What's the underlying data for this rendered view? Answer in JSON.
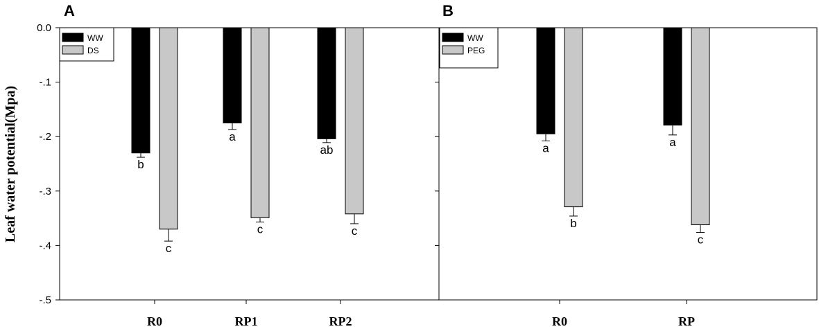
{
  "y_axis_label": "Leaf water potential(Mpa)",
  "y_tick_labels": [
    "0.0",
    "-.1",
    "-.2",
    "-.3",
    "-.4",
    "-.5"
  ],
  "colors": {
    "WW": "#000000",
    "DS": "#c8c8c8",
    "PEG": "#c8c8c8"
  },
  "chart_data": [
    {
      "type": "bar",
      "panel": "A",
      "categories": [
        "R0",
        "RP1",
        "RP2"
      ],
      "series": [
        {
          "name": "WW",
          "values": [
            -0.23,
            -0.175,
            -0.204
          ],
          "errors": [
            0.008,
            0.012,
            0.007
          ],
          "letters": [
            "b",
            "a",
            "ab"
          ]
        },
        {
          "name": "DS",
          "values": [
            -0.37,
            -0.349,
            -0.342
          ],
          "errors": [
            0.022,
            0.008,
            0.018
          ],
          "letters": [
            "c",
            "c",
            "c"
          ]
        }
      ],
      "ylabel": "Leaf water potential(Mpa)",
      "ylim": [
        -0.5,
        0.0
      ],
      "yticks": [
        0.0,
        -0.1,
        -0.2,
        -0.3,
        -0.4,
        -0.5
      ],
      "legend": "top-left",
      "grid": false
    },
    {
      "type": "bar",
      "panel": "B",
      "categories": [
        "R0",
        "RP"
      ],
      "series": [
        {
          "name": "WW",
          "values": [
            -0.195,
            -0.179
          ],
          "errors": [
            0.013,
            0.018
          ],
          "letters": [
            "a",
            "a"
          ]
        },
        {
          "name": "PEG",
          "values": [
            -0.329,
            -0.362
          ],
          "errors": [
            0.017,
            0.014
          ],
          "letters": [
            "b",
            "c"
          ]
        }
      ],
      "ylim": [
        -0.5,
        0.0
      ],
      "legend": "top-left",
      "grid": false
    }
  ]
}
